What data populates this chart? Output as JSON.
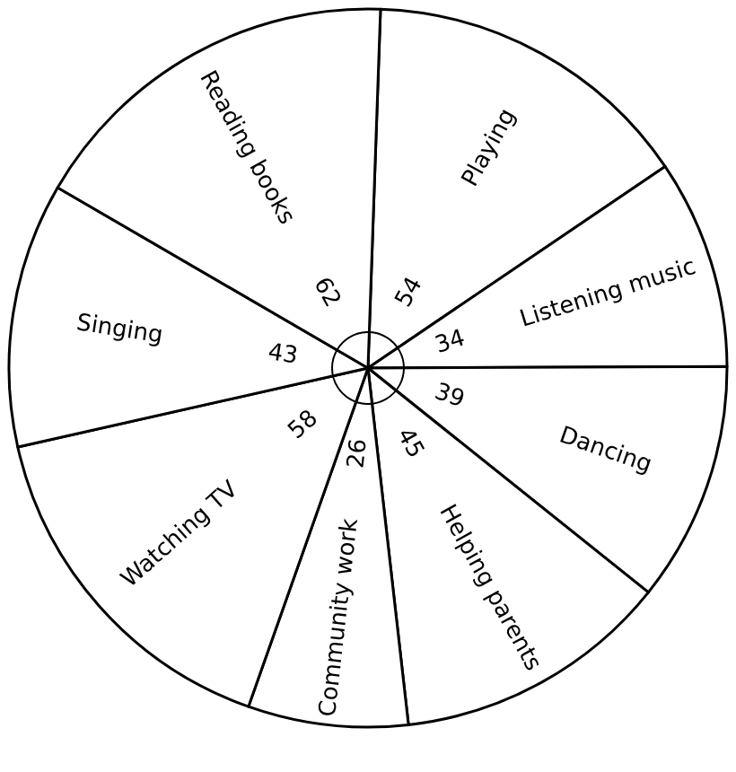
{
  "chart_data": {
    "type": "pie",
    "categories": [
      "Playing",
      "Listening music",
      "Dancing",
      "Helping parents",
      "Community work",
      "Watching TV",
      "Singing",
      "Reading books"
    ],
    "values": [
      54,
      34,
      39,
      45,
      26,
      58,
      43,
      62
    ],
    "colors": [
      "#ffffff",
      "#ffffff",
      "#ffffff",
      "#ffffff",
      "#ffffff",
      "#ffffff",
      "#ffffff",
      "#ffffff"
    ],
    "data_labels": true
  }
}
